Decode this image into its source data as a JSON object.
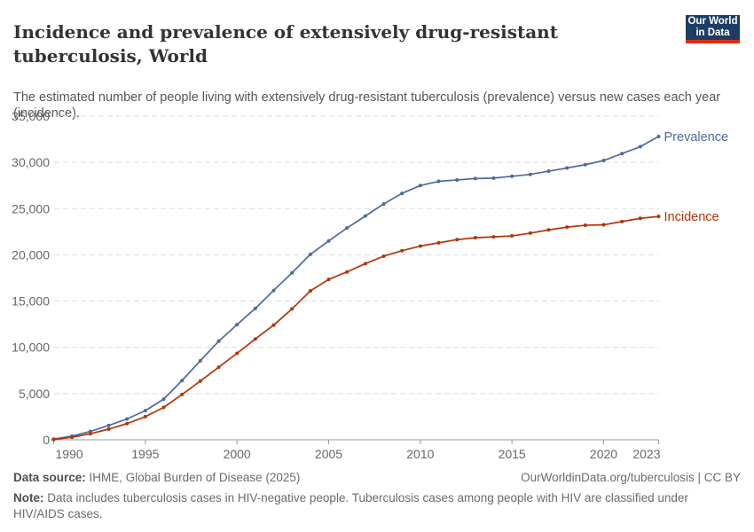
{
  "header": {
    "title": "Incidence and prevalence of extensively drug-resistant tuberculosis, World",
    "subtitle": "The estimated number of people living with extensively drug-resistant tuberculosis (prevalence) versus new cases each year (incidence).",
    "logo": {
      "line1": "Our World",
      "line2": "in Data",
      "bg_color": "#1d3d63",
      "accent_color": "#dc2e12"
    }
  },
  "chart_data": {
    "type": "line",
    "title": "Incidence and prevalence of extensively drug-resistant tuberculosis, World",
    "xlabel": "",
    "ylabel": "",
    "x": [
      1990,
      1991,
      1992,
      1993,
      1994,
      1995,
      1996,
      1997,
      1998,
      1999,
      2000,
      2001,
      2002,
      2003,
      2004,
      2005,
      2006,
      2007,
      2008,
      2009,
      2010,
      2011,
      2012,
      2013,
      2014,
      2015,
      2016,
      2017,
      2018,
      2019,
      2020,
      2021,
      2022,
      2023
    ],
    "series": [
      {
        "name": "Prevalence",
        "color": "#4C6A9C",
        "values": [
          70,
          400,
          900,
          1550,
          2250,
          3150,
          4400,
          6400,
          8550,
          10650,
          12450,
          14200,
          16150,
          18050,
          20050,
          21500,
          22900,
          24200,
          25500,
          26650,
          27500,
          27950,
          28100,
          28250,
          28300,
          28500,
          28700,
          29050,
          29400,
          29750,
          30200,
          30950,
          31700,
          32800
        ]
      },
      {
        "name": "Incidence",
        "color": "#B13507",
        "values": [
          30,
          270,
          650,
          1150,
          1750,
          2500,
          3500,
          4900,
          6350,
          7850,
          9350,
          10900,
          12400,
          14150,
          16100,
          17350,
          18150,
          19050,
          19850,
          20450,
          20950,
          21300,
          21650,
          21850,
          21950,
          22050,
          22350,
          22700,
          23000,
          23200,
          23250,
          23600,
          23950,
          24150
        ]
      }
    ],
    "ylim": [
      0,
      35000
    ],
    "yticks": [
      0,
      5000,
      10000,
      15000,
      20000,
      25000,
      30000,
      35000
    ],
    "ytick_labels": [
      "0",
      "5,000",
      "10,000",
      "15,000",
      "20,000",
      "25,000",
      "30,000",
      "35,000"
    ],
    "xticks": [
      1990,
      1995,
      2000,
      2005,
      2010,
      2015,
      2020,
      2023
    ],
    "grid": "horizontal-dashed",
    "legend_position": "line-end-labels"
  },
  "footer": {
    "source_label": "Data source:",
    "source_text": " IHME, Global Burden of Disease (2025)",
    "link_text": "OurWorldinData.org/tuberculosis | CC BY",
    "note_label": "Note:",
    "note_text": " Data includes tuberculosis cases in HIV-negative people. Tuberculosis cases among people with HIV are classified under HIV/AIDS cases."
  }
}
